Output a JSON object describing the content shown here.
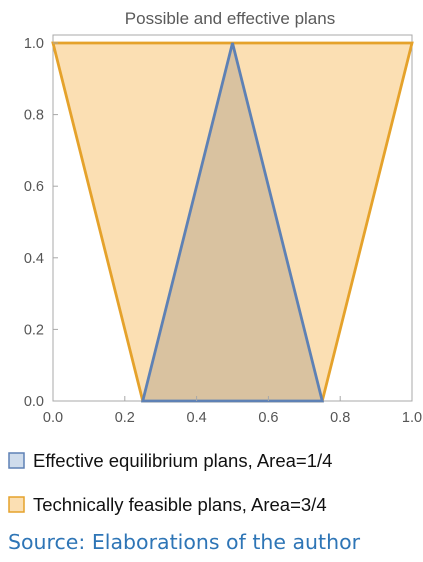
{
  "chart_data": {
    "type": "area",
    "title": "Possible and effective plans",
    "xlabel": "",
    "ylabel": "",
    "xlim": [
      0,
      1
    ],
    "ylim": [
      0,
      1
    ],
    "x_ticks": [
      "0.0",
      "0.2",
      "0.4",
      "0.6",
      "0.8",
      "1.0"
    ],
    "y_ticks": [
      "0.0",
      "0.2",
      "0.4",
      "0.6",
      "0.8",
      "1.0"
    ],
    "grid": false,
    "legend_position": "bottom",
    "series": [
      {
        "name": "Technically feasible plans, Area=3/4",
        "stroke": "#e5a22b",
        "fill": "#fbdfb3",
        "points": [
          [
            0.0,
            1.0
          ],
          [
            1.0,
            1.0
          ],
          [
            0.75,
            0.0
          ],
          [
            0.25,
            0.0
          ]
        ]
      },
      {
        "name": "Effective equilibrium plans, Area=1/4",
        "stroke": "#5e81b5",
        "fill": "#d9c2a0",
        "points": [
          [
            0.25,
            0.0
          ],
          [
            0.5,
            1.0
          ],
          [
            0.75,
            0.0
          ]
        ]
      }
    ],
    "legend": [
      {
        "label": "Effective equilibrium plans, Area=1/4",
        "swatch_fill": "#cfdcec",
        "swatch_stroke": "#5e81b5"
      },
      {
        "label": "Technically feasible plans, Area=3/4",
        "swatch_fill": "#fbdfb3",
        "swatch_stroke": "#e5a22b"
      }
    ]
  },
  "source": "Source: Elaborations of the author"
}
